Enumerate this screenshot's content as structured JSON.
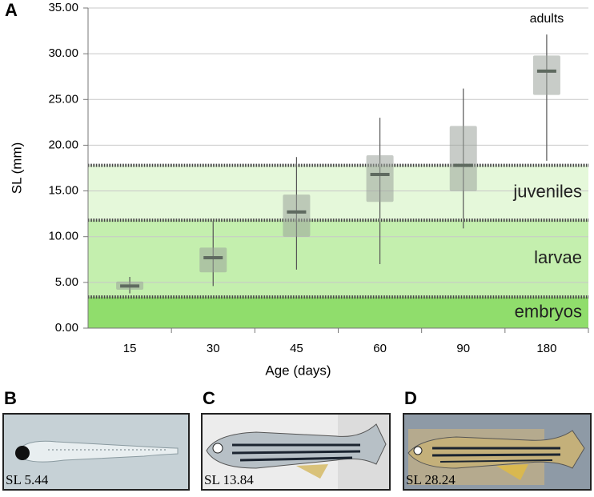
{
  "chart_data": {
    "type": "box",
    "label": "A",
    "ylabel": "SL (mm)",
    "xlabel": "Age (days)",
    "categories": [
      "15",
      "30",
      "45",
      "60",
      "90",
      "180"
    ],
    "boxes": [
      {
        "min": 3.8,
        "q1": 4.2,
        "median": 4.6,
        "q3": 5.1,
        "max": 5.6
      },
      {
        "min": 4.6,
        "q1": 6.1,
        "median": 7.7,
        "q3": 8.8,
        "max": 11.7
      },
      {
        "min": 6.4,
        "q1": 10.0,
        "median": 12.7,
        "q3": 14.6,
        "max": 18.7
      },
      {
        "min": 7.0,
        "q1": 13.8,
        "median": 16.8,
        "q3": 18.9,
        "max": 23.0
      },
      {
        "min": 10.9,
        "q1": 15.0,
        "median": 17.8,
        "q3": 22.1,
        "max": 26.2
      },
      {
        "min": 18.3,
        "q1": 25.5,
        "median": 28.1,
        "q3": 29.8,
        "max": 32.1
      }
    ],
    "box_color": "#9aa39a",
    "median_color": "#5f6a60",
    "stages": [
      {
        "name": "embryos",
        "from": 0,
        "to": 3.4,
        "color": "#90dd6c"
      },
      {
        "name": "larvae",
        "from": 3.4,
        "to": 11.8,
        "color": "#c4efae"
      },
      {
        "name": "juveniles",
        "from": 11.8,
        "to": 17.8,
        "color": "#e5f8da"
      }
    ],
    "annotation": "adults",
    "ylim": [
      0,
      35
    ],
    "yticks": [
      {
        "value": 0,
        "label": "0.00"
      },
      {
        "value": 5,
        "label": "5.00"
      },
      {
        "value": 10,
        "label": "10.00"
      },
      {
        "value": 15,
        "label": "15.00"
      },
      {
        "value": 20,
        "label": "20.00"
      },
      {
        "value": 25,
        "label": "25.00"
      },
      {
        "value": 30,
        "label": "30.00"
      },
      {
        "value": 35,
        "label": "35.00"
      }
    ],
    "grid": true
  },
  "panels": [
    {
      "letter": "B",
      "caption": "SL 5.44"
    },
    {
      "letter": "C",
      "caption": "SL 13.84"
    },
    {
      "letter": "D",
      "caption": "SL 28.24"
    }
  ]
}
